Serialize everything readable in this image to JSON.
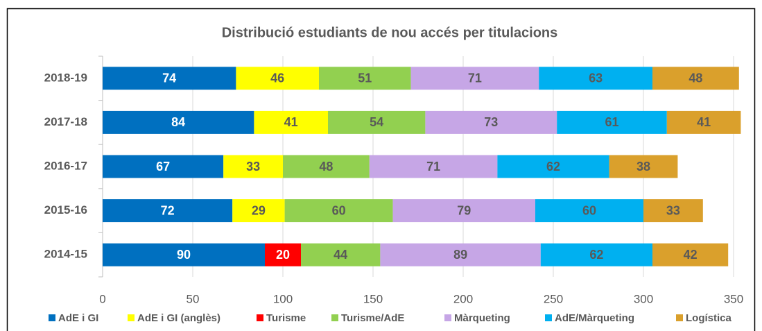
{
  "chart_data": {
    "type": "stacked-bar-horizontal",
    "title": "Distribució estudiants de nou accés per titulacions",
    "categories": [
      "2018-19",
      "2017-18",
      "2016-17",
      "2015-16",
      "2014-15"
    ],
    "series": [
      {
        "name": "AdE i GI",
        "color": "#0070c0",
        "values": [
          74,
          84,
          67,
          72,
          90
        ]
      },
      {
        "name": "AdE i GI (anglès)",
        "color": "#ffff00",
        "values": [
          46,
          41,
          33,
          29,
          null
        ]
      },
      {
        "name": "Turisme",
        "color": "#ff0000",
        "values": [
          null,
          null,
          null,
          null,
          20
        ]
      },
      {
        "name": "Turisme/AdE",
        "color": "#92d050",
        "values": [
          51,
          54,
          48,
          60,
          44
        ]
      },
      {
        "name": "Màrqueting",
        "color": "#c6a6e6",
        "values": [
          71,
          73,
          71,
          79,
          89
        ]
      },
      {
        "name": "AdE/Màrqueting",
        "color": "#00b0f0",
        "values": [
          63,
          61,
          62,
          60,
          62
        ]
      },
      {
        "name": "Logística",
        "color": "#daa02c",
        "values": [
          48,
          41,
          38,
          33,
          42
        ]
      }
    ],
    "xlim": [
      0,
      350
    ],
    "xticks": [
      0,
      50,
      100,
      150,
      200,
      250,
      300,
      350
    ],
    "grid": true,
    "legend": "bottom"
  }
}
